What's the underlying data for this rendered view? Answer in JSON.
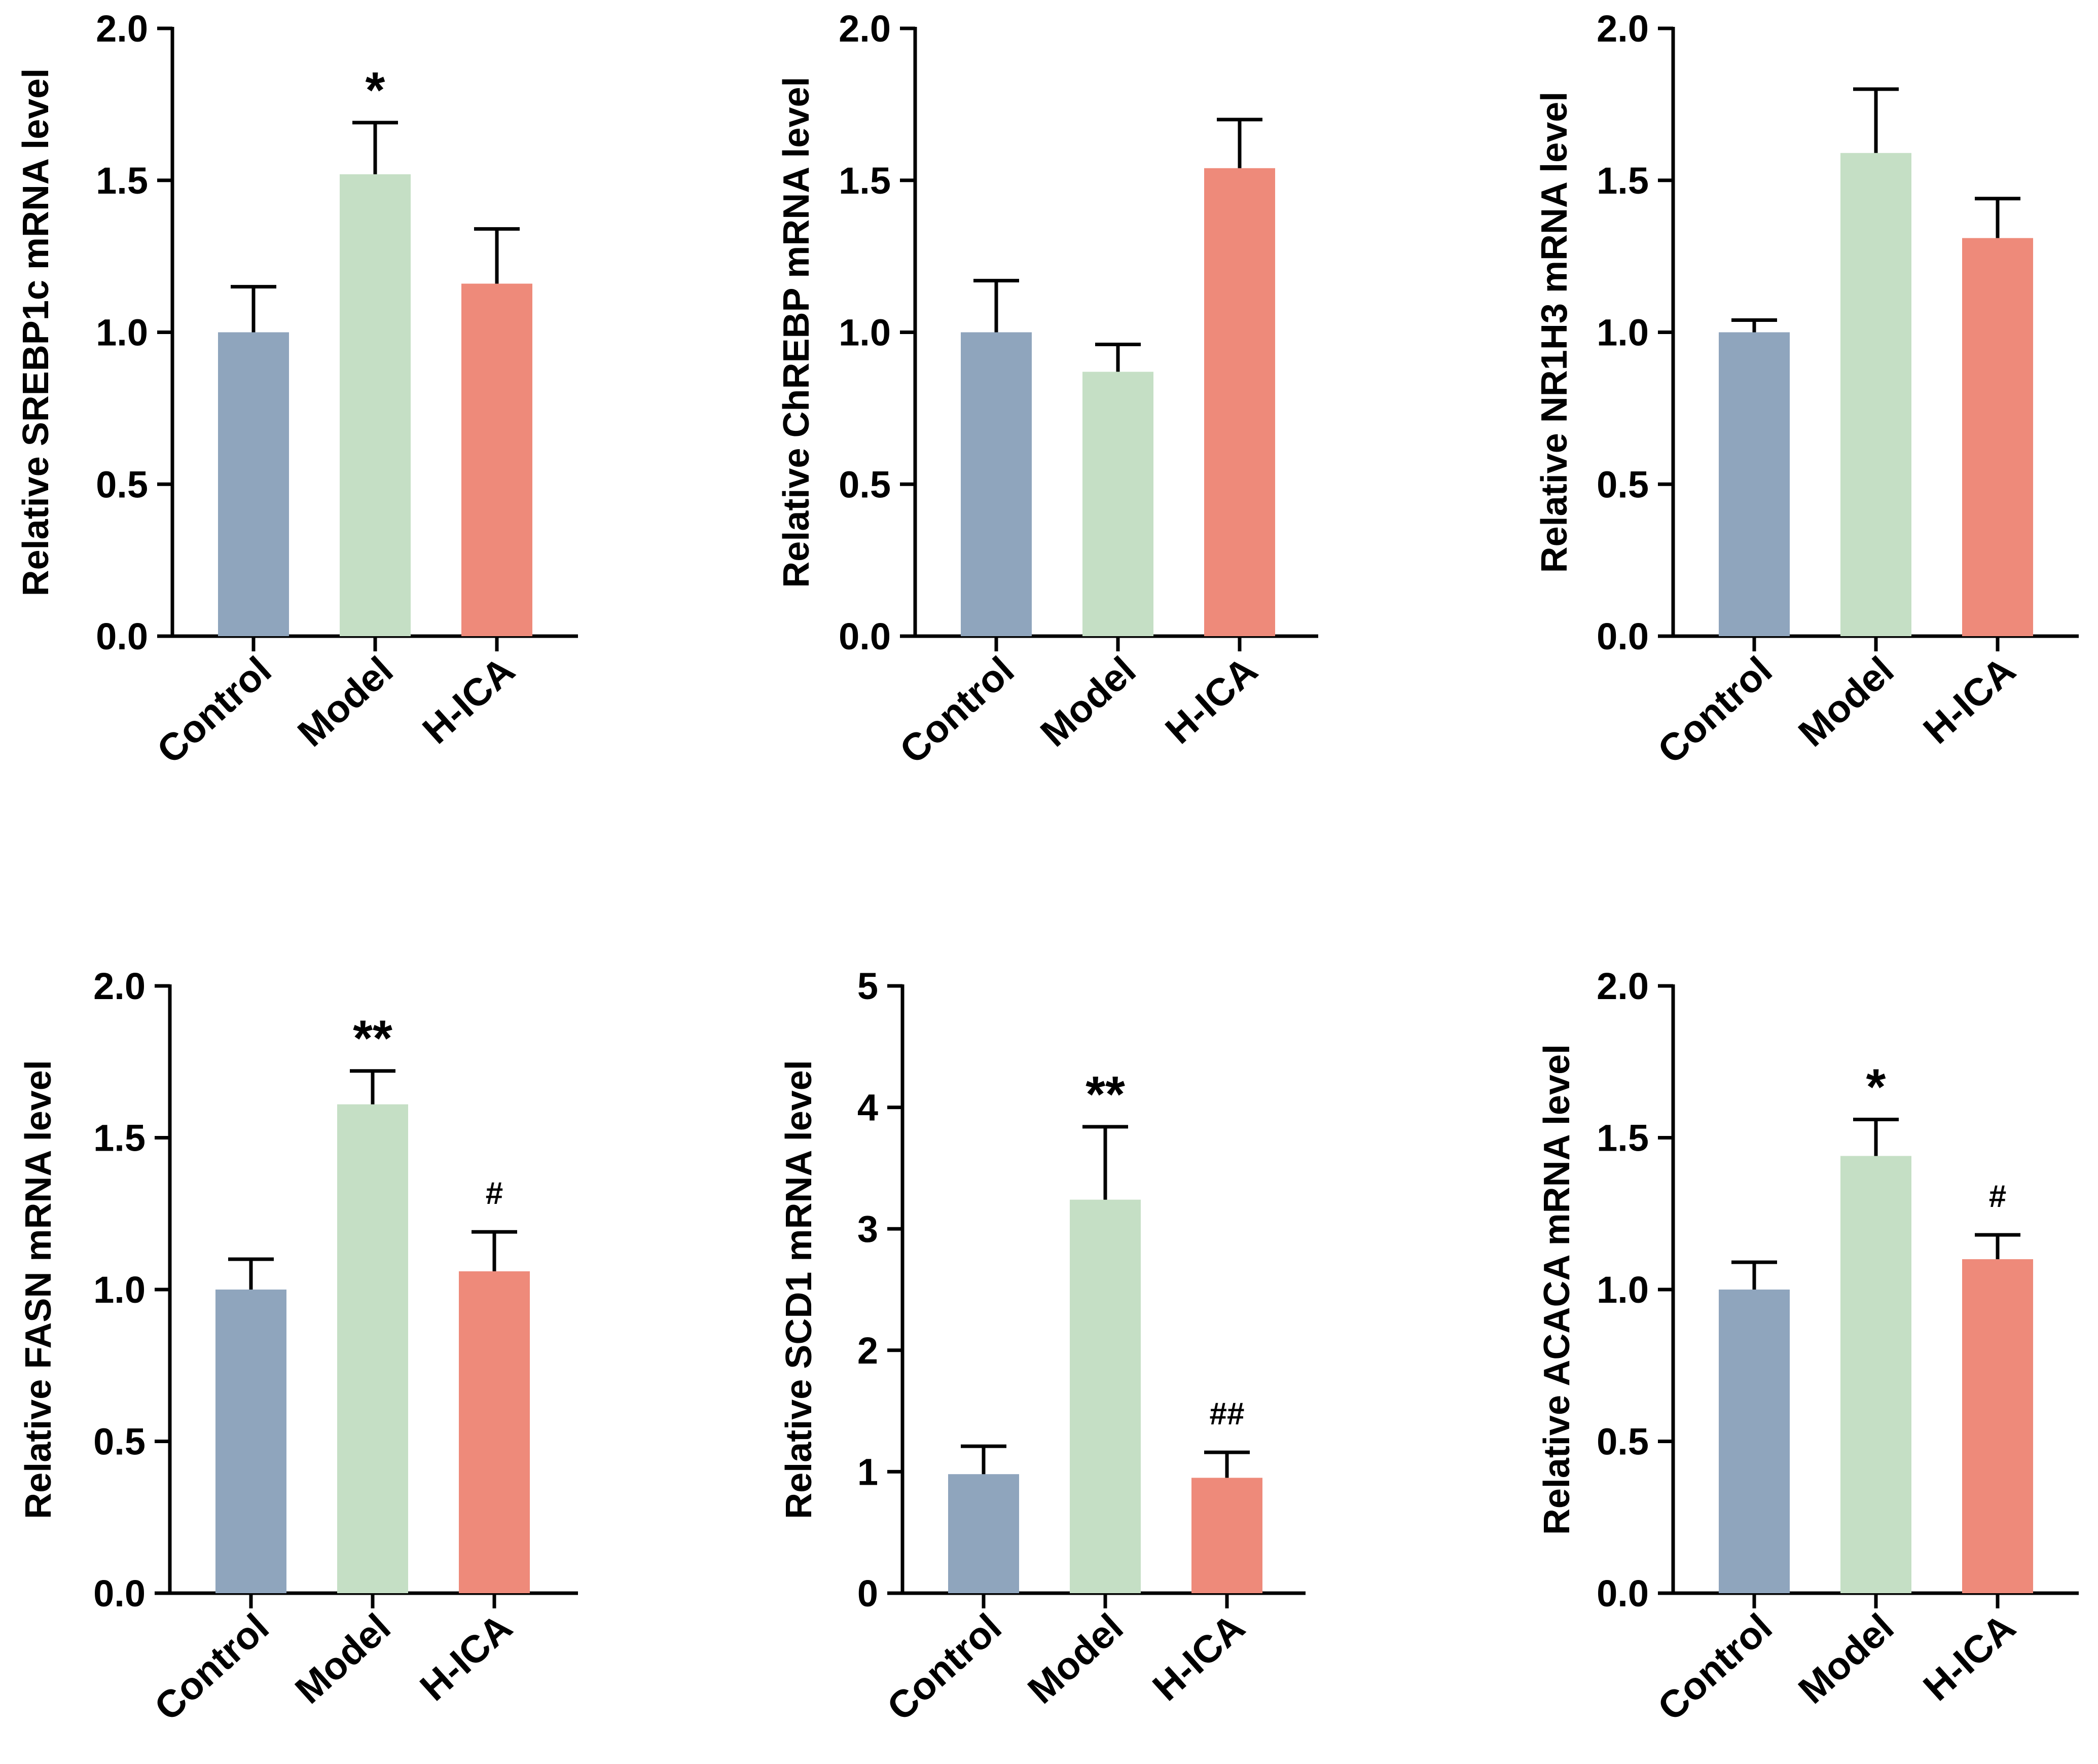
{
  "colors": {
    "Control": "#8fa5bd",
    "Model": "#c5dfc5",
    "H-ICA": "#ee8a7a",
    "axis": "#000000"
  },
  "chart_data": [
    {
      "type": "bar",
      "title": "",
      "xlabel": "",
      "ylabel": "Relative SREBP1c mRNA level",
      "categories": [
        "Control",
        "Model",
        "H-ICA"
      ],
      "values": [
        1.0,
        1.52,
        1.16
      ],
      "errors": [
        0.15,
        0.17,
        0.18
      ],
      "annotations": [
        "",
        "*",
        ""
      ],
      "ylim": [
        0,
        2.0
      ],
      "yticks": [
        "0.0",
        "0.5",
        "1.0",
        "1.5",
        "2.0"
      ]
    },
    {
      "type": "bar",
      "title": "",
      "xlabel": "",
      "ylabel": "Relative ChREBP mRNA level",
      "categories": [
        "Control",
        "Model",
        "H-ICA"
      ],
      "values": [
        1.0,
        0.87,
        1.54
      ],
      "errors": [
        0.17,
        0.09,
        0.16
      ],
      "annotations": [
        "",
        "",
        ""
      ],
      "ylim": [
        0,
        2.0
      ],
      "yticks": [
        "0.0",
        "0.5",
        "1.0",
        "1.5",
        "2.0"
      ]
    },
    {
      "type": "bar",
      "title": "",
      "xlabel": "",
      "ylabel": "Relative NR1H3 mRNA level",
      "categories": [
        "Control",
        "Model",
        "H-ICA"
      ],
      "values": [
        1.0,
        1.59,
        1.31
      ],
      "errors": [
        0.04,
        0.21,
        0.13
      ],
      "annotations": [
        "",
        "",
        ""
      ],
      "ylim": [
        0,
        2.0
      ],
      "yticks": [
        "0.0",
        "0.5",
        "1.0",
        "1.5",
        "2.0"
      ]
    },
    {
      "type": "bar",
      "title": "",
      "xlabel": "",
      "ylabel": "Relative FASN mRNA level",
      "categories": [
        "Control",
        "Model",
        "H-ICA"
      ],
      "values": [
        1.0,
        1.61,
        1.06
      ],
      "errors": [
        0.1,
        0.11,
        0.13
      ],
      "annotations": [
        "",
        "**",
        "#"
      ],
      "ylim": [
        0,
        2.0
      ],
      "yticks": [
        "0.0",
        "0.5",
        "1.0",
        "1.5",
        "2.0"
      ]
    },
    {
      "type": "bar",
      "title": "",
      "xlabel": "",
      "ylabel": "Relative SCD1 mRNA level",
      "categories": [
        "Control",
        "Model",
        "H-ICA"
      ],
      "values": [
        0.98,
        3.24,
        0.95
      ],
      "errors": [
        0.23,
        0.6,
        0.21
      ],
      "annotations": [
        "",
        "**",
        "##"
      ],
      "ylim": [
        0,
        5
      ],
      "yticks": [
        "0",
        "1",
        "2",
        "3",
        "4",
        "5"
      ]
    },
    {
      "type": "bar",
      "title": "",
      "xlabel": "",
      "ylabel": "Relative ACACA mRNA level",
      "categories": [
        "Control",
        "Model",
        "H-ICA"
      ],
      "values": [
        1.0,
        1.44,
        1.1
      ],
      "errors": [
        0.09,
        0.12,
        0.08
      ],
      "annotations": [
        "",
        "*",
        "#"
      ],
      "ylim": [
        0,
        2.0
      ],
      "yticks": [
        "0.0",
        "0.5",
        "1.0",
        "1.5",
        "2.0"
      ]
    }
  ]
}
